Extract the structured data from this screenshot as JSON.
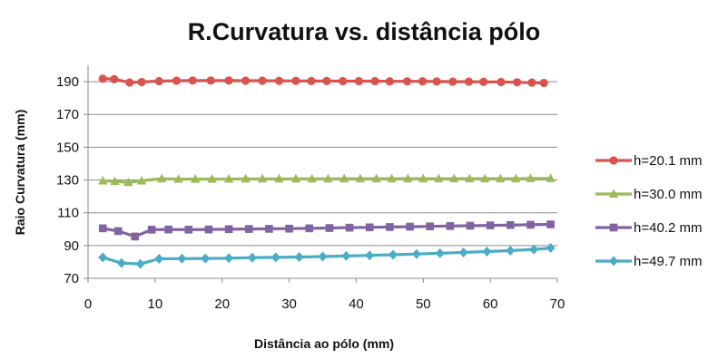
{
  "chart_data": {
    "type": "line",
    "title": "R.Curvatura vs. distância pólo",
    "xlabel": "Distância ao pólo (mm)",
    "ylabel": "Raio Curvatura (mm)",
    "xlim": [
      0,
      70
    ],
    "ylim": [
      70,
      200
    ],
    "xticks": [
      0,
      10,
      20,
      30,
      40,
      50,
      60,
      70
    ],
    "yticks": [
      70,
      90,
      110,
      130,
      150,
      170,
      190
    ],
    "grid": true,
    "legend_position": "right",
    "series": [
      {
        "name": "h=20.1 mm",
        "color": "#d9534f",
        "marker": "circle",
        "x": [
          2.2,
          3.9,
          6.2,
          8.0,
          10.6,
          13.2,
          15.6,
          18.3,
          21.0,
          23.5,
          26.0,
          28.5,
          31.0,
          33.3,
          35.6,
          38.0,
          40.4,
          42.8,
          45.0,
          47.6,
          49.9,
          52.0,
          54.4,
          56.8,
          59.0,
          61.6,
          64.0,
          66.2,
          68.0
        ],
        "y": [
          191.8,
          191.5,
          189.5,
          189.8,
          190.3,
          190.6,
          190.7,
          190.7,
          190.7,
          190.6,
          190.6,
          190.5,
          190.5,
          190.4,
          190.4,
          190.3,
          190.3,
          190.3,
          190.2,
          190.2,
          190.2,
          190.1,
          190.0,
          190.0,
          189.9,
          189.8,
          189.6,
          189.4,
          189.2
        ]
      },
      {
        "name": "h=30.0 mm",
        "color": "#9bbb59",
        "marker": "triangle",
        "x": [
          2.2,
          4.0,
          6.0,
          8.0,
          11.0,
          13.5,
          16.0,
          18.5,
          21.0,
          23.5,
          26.0,
          28.5,
          31.0,
          33.4,
          35.8,
          38.2,
          40.6,
          43.0,
          45.3,
          47.7,
          50.0,
          52.3,
          54.6,
          56.9,
          59.2,
          61.5,
          63.8,
          66.0,
          69.0
        ],
        "y": [
          129.5,
          129.2,
          128.5,
          129.5,
          130.8,
          130.5,
          130.5,
          130.6,
          130.6,
          130.7,
          130.7,
          130.7,
          130.7,
          130.7,
          130.7,
          130.8,
          130.8,
          130.8,
          130.8,
          130.8,
          130.8,
          130.8,
          130.8,
          130.8,
          130.8,
          130.8,
          130.8,
          130.9,
          130.9
        ]
      },
      {
        "name": "h=40.2 mm",
        "color": "#8064a2",
        "marker": "square",
        "x": [
          2.2,
          4.5,
          7.0,
          9.5,
          12.0,
          15.0,
          18.0,
          21.0,
          24.0,
          27.0,
          30.0,
          33.0,
          36.0,
          39.0,
          42.0,
          45.0,
          48.0,
          51.0,
          54.0,
          57.0,
          60.0,
          63.0,
          66.0,
          69.0
        ],
        "y": [
          100.5,
          98.8,
          95.5,
          99.7,
          99.8,
          99.7,
          99.8,
          100.0,
          100.1,
          100.2,
          100.3,
          100.5,
          100.7,
          100.9,
          101.1,
          101.3,
          101.5,
          101.7,
          101.9,
          102.1,
          102.3,
          102.5,
          102.7,
          102.9
        ]
      },
      {
        "name": "h=49.7 mm",
        "color": "#4bacc6",
        "marker": "diamond",
        "x": [
          2.2,
          5.0,
          7.8,
          10.6,
          14.0,
          17.5,
          21.0,
          24.5,
          28.0,
          31.5,
          35.0,
          38.5,
          42.0,
          45.5,
          49.0,
          52.5,
          56.0,
          59.5,
          63.0,
          66.5,
          69.0
        ],
        "y": [
          82.8,
          79.3,
          78.8,
          81.9,
          82.0,
          82.1,
          82.3,
          82.6,
          82.8,
          83.0,
          83.3,
          83.6,
          84.0,
          84.4,
          84.8,
          85.3,
          85.8,
          86.3,
          86.9,
          87.6,
          88.5
        ]
      }
    ]
  }
}
